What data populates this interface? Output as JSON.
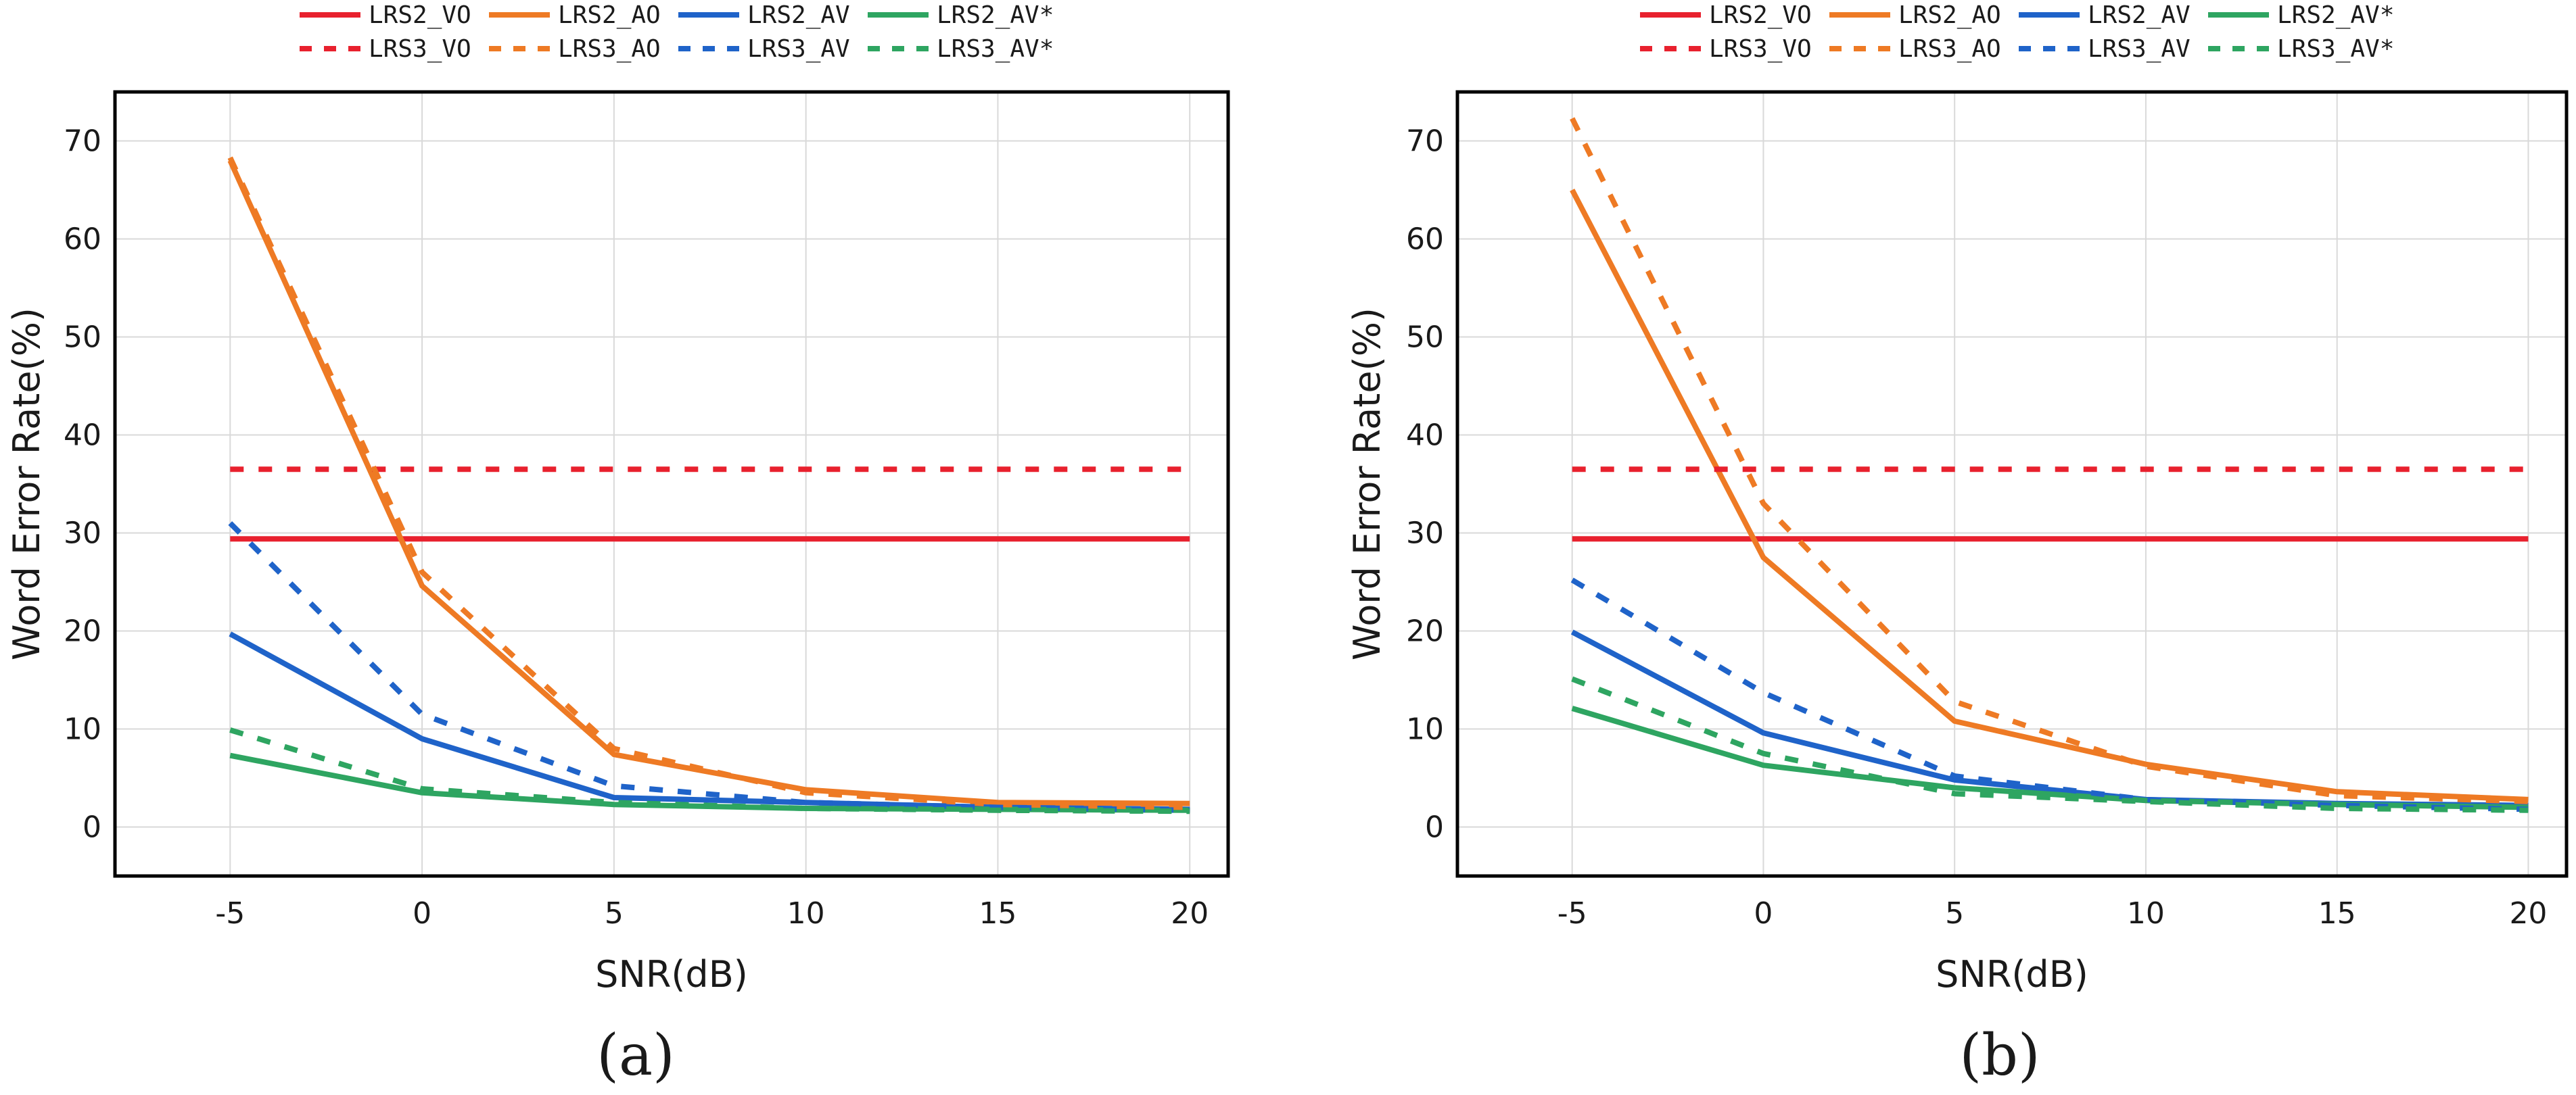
{
  "chart_data": [
    {
      "type": "line",
      "panel_label": "(a)",
      "xlabel": "SNR(dB)",
      "ylabel": "Word Error Rate(%)",
      "x": [
        -5,
        0,
        5,
        10,
        15,
        20
      ],
      "xlim": [
        -8,
        21
      ],
      "ylim": [
        -5,
        75
      ],
      "xticks": [
        -5,
        0,
        5,
        10,
        15,
        20
      ],
      "yticks": [
        0,
        10,
        20,
        30,
        40,
        50,
        60,
        70
      ],
      "grid": true,
      "legend_position": "top-center",
      "series": [
        {
          "name": "LRS2_VO",
          "color": "#e8212e",
          "style": "solid",
          "values": [
            29.4,
            29.4,
            29.4,
            29.4,
            29.4,
            29.4
          ]
        },
        {
          "name": "LRS2_AO",
          "color": "#ee7a24",
          "style": "solid",
          "values": [
            68.0,
            24.6,
            7.4,
            3.8,
            2.5,
            2.4
          ]
        },
        {
          "name": "LRS2_AV",
          "color": "#1f63c9",
          "style": "solid",
          "values": [
            19.7,
            9.0,
            3.0,
            2.5,
            2.0,
            1.8
          ]
        },
        {
          "name": "LRS2_AV*",
          "color": "#2ea561",
          "style": "solid",
          "values": [
            7.3,
            3.5,
            2.3,
            1.9,
            1.8,
            1.7
          ]
        },
        {
          "name": "LRS3_VO",
          "color": "#e8212e",
          "style": "dashed",
          "values": [
            36.5,
            36.5,
            36.5,
            36.5,
            36.5,
            36.5
          ]
        },
        {
          "name": "LRS3_AO",
          "color": "#ee7a24",
          "style": "dashed",
          "values": [
            68.3,
            26.0,
            8.0,
            3.5,
            2.3,
            2.0
          ]
        },
        {
          "name": "LRS3_AV",
          "color": "#1f63c9",
          "style": "dashed",
          "values": [
            31.0,
            11.5,
            4.2,
            2.5,
            2.0,
            1.7
          ]
        },
        {
          "name": "LRS3_AV*",
          "color": "#2ea561",
          "style": "dashed",
          "values": [
            9.9,
            3.9,
            2.5,
            1.9,
            1.7,
            1.6
          ]
        }
      ]
    },
    {
      "type": "line",
      "panel_label": "(b)",
      "xlabel": "SNR(dB)",
      "ylabel": "Word Error Rate(%)",
      "x": [
        -5,
        0,
        5,
        10,
        15,
        20
      ],
      "xlim": [
        -8,
        21
      ],
      "ylim": [
        -5,
        75
      ],
      "xticks": [
        -5,
        0,
        5,
        10,
        15,
        20
      ],
      "yticks": [
        0,
        10,
        20,
        30,
        40,
        50,
        60,
        70
      ],
      "grid": true,
      "legend_position": "top-center",
      "series": [
        {
          "name": "LRS2_VO",
          "color": "#e8212e",
          "style": "solid",
          "values": [
            29.4,
            29.4,
            29.4,
            29.4,
            29.4,
            29.4
          ]
        },
        {
          "name": "LRS2_AO",
          "color": "#ee7a24",
          "style": "solid",
          "values": [
            65.0,
            27.5,
            10.8,
            6.4,
            3.6,
            2.8
          ]
        },
        {
          "name": "LRS2_AV",
          "color": "#1f63c9",
          "style": "solid",
          "values": [
            19.9,
            9.6,
            4.8,
            2.8,
            2.4,
            2.2
          ]
        },
        {
          "name": "LRS2_AV*",
          "color": "#2ea561",
          "style": "solid",
          "values": [
            12.1,
            6.3,
            4.0,
            2.7,
            2.3,
            2.0
          ]
        },
        {
          "name": "LRS3_VO",
          "color": "#e8212e",
          "style": "dashed",
          "values": [
            36.5,
            36.5,
            36.5,
            36.5,
            36.5,
            36.5
          ]
        },
        {
          "name": "LRS3_AO",
          "color": "#ee7a24",
          "style": "dashed",
          "values": [
            72.3,
            33.0,
            12.8,
            6.2,
            3.2,
            2.6
          ]
        },
        {
          "name": "LRS3_AV",
          "color": "#1f63c9",
          "style": "dashed",
          "values": [
            25.2,
            13.7,
            5.2,
            2.8,
            2.2,
            1.8
          ]
        },
        {
          "name": "LRS3_AV*",
          "color": "#2ea561",
          "style": "dashed",
          "values": [
            15.1,
            7.5,
            3.4,
            2.6,
            1.9,
            1.7
          ]
        }
      ]
    }
  ]
}
